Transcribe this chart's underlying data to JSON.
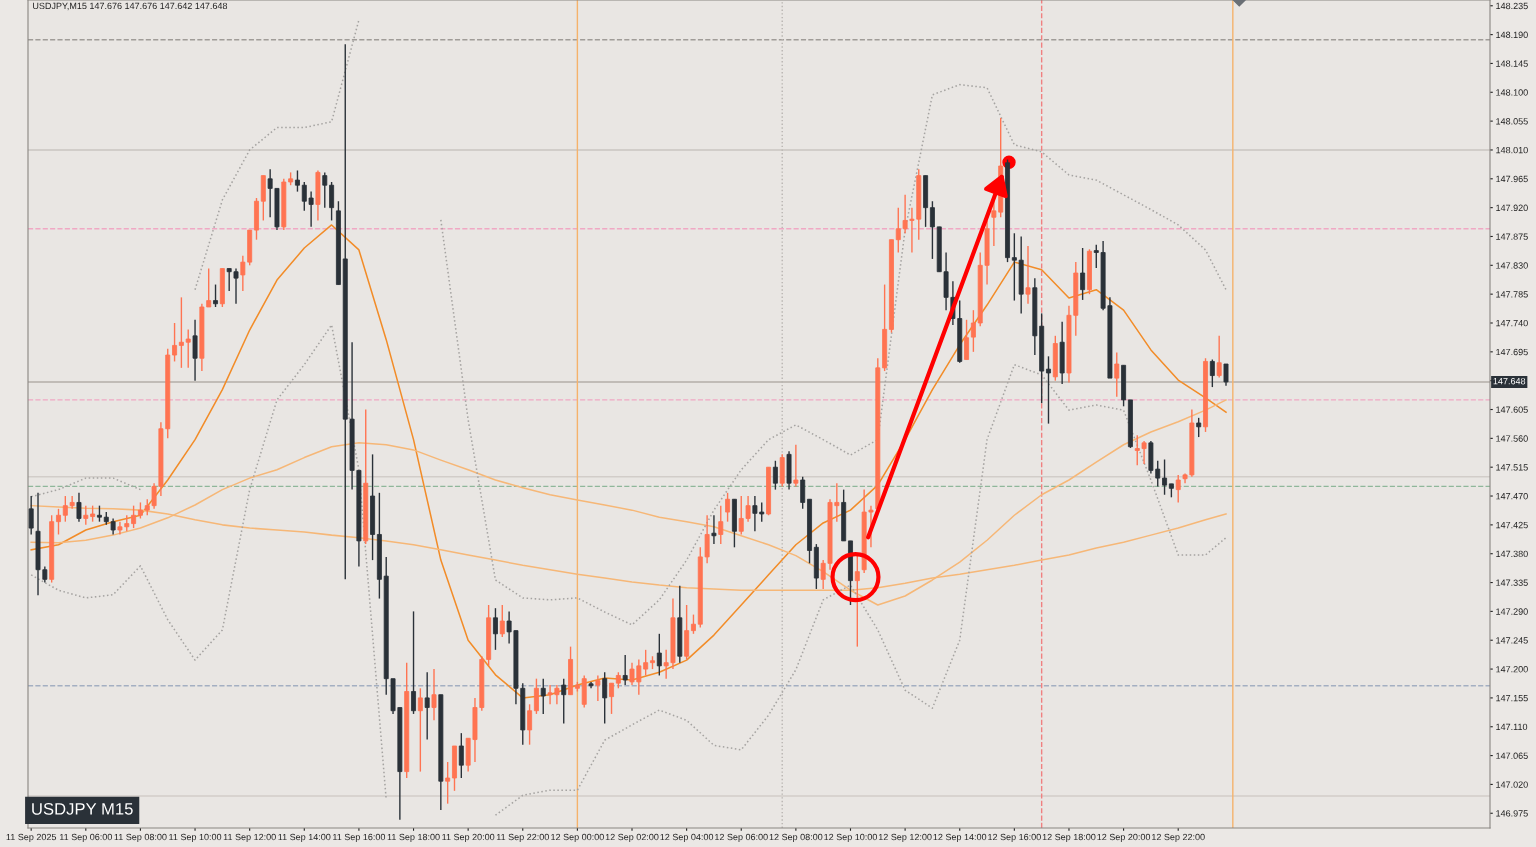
{
  "chart_data": {
    "type": "candlestick",
    "title": "USDJPY,M15 147.676 147.676 147.642 147.648",
    "annotations": [
      "USDJPY M15"
    ],
    "colors": [
      "#2a3138",
      "#2a3138",
      "#2a3138",
      "#ff7452",
      "#ff7452",
      "#ff7452",
      "#ff7452",
      "#2a3138",
      "#ff7452",
      "#ff7452",
      "#2a3138",
      "#2a3138",
      "#2a3138",
      "#ff7452",
      "#ff7452",
      "#ff7452",
      "#ff7452",
      "#ff7452",
      "#ff7452",
      "#ff7452",
      "#ff7452",
      "#ff7452",
      "#ff7452",
      "#ff7452",
      "#2a3138",
      "#ff7452",
      "#ff7452",
      "#2a3138",
      "#ff7452",
      "#2a3138",
      "#2a3138",
      "#ff7452",
      "#ff7452",
      "#ff7452",
      "#ff7452",
      "#2a3138",
      "#2a3138",
      "#ff7452",
      "#ff7452",
      "#2a3138",
      "#2a3138",
      "#2a3138",
      "#ff7452",
      "#2a3138",
      "#2a3138",
      "#2a3138",
      "#2a3138",
      "#2a3138",
      "#2a3138",
      "#ff7452",
      "#2a3138",
      "#2a3138",
      "#2a3138",
      "#2a3138",
      "#2a3138",
      "#ff7452",
      "#2a3138",
      "#ff7452",
      "#2a3138",
      "#ff7452",
      "#2a3138",
      "#ff7452",
      "#ff7452",
      "#2a3138",
      "#ff7452",
      "#ff7452",
      "#ff7452",
      "#ff7452",
      "#2a3138",
      "#ff7452",
      "#2a3138",
      "#2a3138",
      "#2a3138",
      "#ff7452",
      "#ff7452",
      "#2a3138",
      "#ff7452",
      "#ff7452",
      "#2a3138",
      "#ff7452",
      "#ff7452",
      "#ff7452",
      "#2a3138",
      "#ff7452",
      "#2a3138",
      "#ff7452",
      "#ff7452",
      "#2a3138",
      "#ff7452",
      "#ff7452",
      "#ff7452",
      "#ff7452",
      "#2a3138",
      "#ff7452",
      "#ff7452",
      "#2a3138",
      "#ff7452",
      "#ff7452",
      "#ff7452",
      "#ff7452",
      "#2a3138",
      "#ff7452",
      "#ff7452",
      "#2a3138",
      "#ff7452",
      "#ff7452",
      "#2a3138",
      "#2a3138",
      "#ff7452",
      "#2a3138",
      "#ff7452",
      "#2a3138",
      "#ff7452",
      "#2a3138",
      "#2a3138",
      "#2a3138",
      "#ff7452",
      "#ff7452",
      "#ff7452",
      "#2a3138",
      "#2a3138",
      "#ff7452",
      "#ff7452",
      "#ff7452",
      "#ff7452",
      "#ff7452",
      "#ff7452",
      "#ff7452",
      "#ff7452",
      "#ff7452",
      "#ff7452",
      "#2a3138",
      "#2a3138",
      "#2a3138",
      "#2a3138",
      "#2a3138",
      "#2a3138",
      "#ff7452",
      "#ff7452",
      "#ff7452",
      "#ff7452",
      "#ff7452",
      "#ff7452",
      "#2a3138",
      "#2a3138",
      "#2a3138",
      "#ff7452",
      "#2a3138",
      "#2a3138",
      "#2a3138",
      "#ff7452",
      "#2a3138",
      "#ff7452",
      "#ff7452",
      "#2a3138",
      "#ff7452",
      "#2a3138",
      "#2a3138",
      "#2a3138",
      "#ff7452",
      "#2a3138",
      "#2a3138",
      "#ff7452",
      "#ff7452",
      "#2a3138",
      "#2a3138",
      "#2a3138",
      "#2a3138",
      "#ff7452",
      "#ff7452",
      "#ff7452",
      "#2a3138",
      "#ff7452",
      "#2a3138",
      "#ff7452",
      "#2a3138"
    ],
    "x": [
      "2025-09-11T04:00",
      "2025-09-11T04:15",
      "2025-09-11T04:30",
      "2025-09-11T04:45",
      "2025-09-11T05:00",
      "2025-09-11T05:15",
      "2025-09-11T05:30",
      "2025-09-11T05:45",
      "2025-09-11T06:00",
      "2025-09-11T06:15",
      "2025-09-11T06:30",
      "2025-09-11T06:45",
      "2025-09-11T07:00",
      "2025-09-11T07:15",
      "2025-09-11T07:30",
      "2025-09-11T07:45",
      "2025-09-11T08:00",
      "2025-09-11T08:15",
      "2025-09-11T08:30",
      "2025-09-11T08:45",
      "2025-09-11T09:00",
      "2025-09-11T09:15",
      "2025-09-11T09:30",
      "2025-09-11T09:45",
      "2025-09-11T10:00",
      "2025-09-11T10:15",
      "2025-09-11T10:30",
      "2025-09-11T10:45",
      "2025-09-11T11:00",
      "2025-09-11T11:15",
      "2025-09-11T11:30",
      "2025-09-11T11:45",
      "2025-09-11T12:00",
      "2025-09-11T12:15",
      "2025-09-11T12:30",
      "2025-09-11T12:45",
      "2025-09-11T13:00",
      "2025-09-11T13:15",
      "2025-09-11T13:30",
      "2025-09-11T13:45",
      "2025-09-11T14:00",
      "2025-09-11T14:15",
      "2025-09-11T14:30",
      "2025-09-11T14:45",
      "2025-09-11T15:00",
      "2025-09-11T15:15",
      "2025-09-11T15:30",
      "2025-09-11T15:45",
      "2025-09-11T16:00",
      "2025-09-11T16:15",
      "2025-09-11T16:30",
      "2025-09-11T16:45",
      "2025-09-11T17:00",
      "2025-09-11T17:15",
      "2025-09-11T17:30",
      "2025-09-11T17:45",
      "2025-09-11T18:00",
      "2025-09-11T18:15",
      "2025-09-11T18:30",
      "2025-09-11T18:45",
      "2025-09-11T19:00",
      "2025-09-11T19:15",
      "2025-09-11T19:30",
      "2025-09-11T19:45",
      "2025-09-11T20:00",
      "2025-09-11T20:15",
      "2025-09-11T20:30",
      "2025-09-11T20:45",
      "2025-09-11T21:00",
      "2025-09-11T21:15",
      "2025-09-11T21:30",
      "2025-09-11T21:45",
      "2025-09-11T22:00",
      "2025-09-11T22:15",
      "2025-09-11T22:30",
      "2025-09-11T22:45",
      "2025-09-11T23:00",
      "2025-09-11T23:15",
      "2025-09-11T23:30",
      "2025-09-11T23:45",
      "2025-09-12T00:00",
      "2025-09-12T00:15",
      "2025-09-12T00:30",
      "2025-09-12T00:45",
      "2025-09-12T01:00",
      "2025-09-12T01:15",
      "2025-09-12T01:30",
      "2025-09-12T01:45",
      "2025-09-12T02:00",
      "2025-09-12T02:15",
      "2025-09-12T02:30",
      "2025-09-12T02:45",
      "2025-09-12T03:00",
      "2025-09-12T03:15",
      "2025-09-12T03:30",
      "2025-09-12T03:45",
      "2025-09-12T04:00",
      "2025-09-12T04:15",
      "2025-09-12T04:30",
      "2025-09-12T04:45",
      "2025-09-12T05:00",
      "2025-09-12T05:15",
      "2025-09-12T05:30",
      "2025-09-12T05:45",
      "2025-09-12T06:00",
      "2025-09-12T06:15",
      "2025-09-12T06:30",
      "2025-09-12T06:45",
      "2025-09-12T07:00",
      "2025-09-12T07:15",
      "2025-09-12T07:30",
      "2025-09-12T07:45",
      "2025-09-12T08:00",
      "2025-09-12T08:15",
      "2025-09-12T08:30",
      "2025-09-12T08:45",
      "2025-09-12T09:00",
      "2025-09-12T09:15",
      "2025-09-12T09:30",
      "2025-09-12T09:45",
      "2025-09-12T10:00",
      "2025-09-12T10:15",
      "2025-09-12T10:30",
      "2025-09-12T10:45",
      "2025-09-12T11:00",
      "2025-09-12T11:15",
      "2025-09-12T11:30",
      "2025-09-12T11:45",
      "2025-09-12T12:00",
      "2025-09-12T12:15",
      "2025-09-12T12:30",
      "2025-09-12T12:45",
      "2025-09-12T13:00",
      "2025-09-12T13:15",
      "2025-09-12T13:30",
      "2025-09-12T13:45",
      "2025-09-12T14:00",
      "2025-09-12T14:15",
      "2025-09-12T14:30",
      "2025-09-12T14:45",
      "2025-09-12T15:00",
      "2025-09-12T15:15",
      "2025-09-12T15:30",
      "2025-09-12T15:45",
      "2025-09-12T16:00",
      "2025-09-12T16:15",
      "2025-09-12T16:30",
      "2025-09-12T16:45",
      "2025-09-12T17:00",
      "2025-09-12T17:15",
      "2025-09-12T17:30",
      "2025-09-12T17:45",
      "2025-09-12T18:00",
      "2025-09-12T18:15",
      "2025-09-12T18:30",
      "2025-09-12T18:45",
      "2025-09-12T19:00",
      "2025-09-12T19:15",
      "2025-09-12T19:30",
      "2025-09-12T19:45",
      "2025-09-12T20:00",
      "2025-09-12T20:15",
      "2025-09-12T20:30",
      "2025-09-12T20:45",
      "2025-09-12T21:00",
      "2025-09-12T21:15",
      "2025-09-12T21:30",
      "2025-09-12T21:45",
      "2025-09-12T22:00",
      "2025-09-12T22:15",
      "2025-09-12T22:30",
      "2025-09-12T22:45",
      "2025-09-12T23:00",
      "2025-09-12T23:15",
      "2025-09-12T23:30",
      "2025-09-12T23:45"
    ],
    "ohlc": [
      [
        147.45,
        147.47,
        147.41,
        147.42
      ],
      [
        147.415,
        147.475,
        147.315,
        147.355
      ],
      [
        147.355,
        147.36,
        147.335,
        147.34
      ],
      [
        147.34,
        147.44,
        147.335,
        147.43
      ],
      [
        147.43,
        147.45,
        147.41,
        147.44
      ],
      [
        147.44,
        147.47,
        147.43,
        147.455
      ],
      [
        147.455,
        147.47,
        147.45,
        147.46
      ],
      [
        147.46,
        147.475,
        147.43,
        147.435
      ],
      [
        147.435,
        147.455,
        147.425,
        147.44
      ],
      [
        147.438,
        147.455,
        147.43,
        147.442
      ],
      [
        147.44,
        147.455,
        147.43,
        147.437
      ],
      [
        147.437,
        147.445,
        147.425,
        147.43
      ],
      [
        147.43,
        147.435,
        147.41,
        147.417
      ],
      [
        147.417,
        147.43,
        147.41,
        147.422
      ],
      [
        147.422,
        147.44,
        147.415,
        147.427
      ],
      [
        147.427,
        147.455,
        147.42,
        147.44
      ],
      [
        147.44,
        147.46,
        147.435,
        147.448
      ],
      [
        147.448,
        147.465,
        147.44,
        147.455
      ],
      [
        147.455,
        147.49,
        147.45,
        147.485
      ],
      [
        147.485,
        147.585,
        147.47,
        147.575
      ],
      [
        147.575,
        147.7,
        147.56,
        147.69
      ],
      [
        147.69,
        147.74,
        147.68,
        147.705
      ],
      [
        147.705,
        147.78,
        147.67,
        147.71
      ],
      [
        147.71,
        147.73,
        147.67,
        147.715
      ],
      [
        147.72,
        147.745,
        147.65,
        147.685
      ],
      [
        147.685,
        147.77,
        147.665,
        147.765
      ],
      [
        147.765,
        147.825,
        147.765,
        147.775
      ],
      [
        147.775,
        147.8,
        147.765,
        147.77
      ],
      [
        147.77,
        147.825,
        147.765,
        147.825
      ],
      [
        147.825,
        147.825,
        147.79,
        147.82
      ],
      [
        147.82,
        147.825,
        147.77,
        147.81
      ],
      [
        147.815,
        147.845,
        147.79,
        147.835
      ],
      [
        147.835,
        147.885,
        147.83,
        147.885
      ],
      [
        147.885,
        147.935,
        147.87,
        147.93
      ],
      [
        147.93,
        147.97,
        147.9,
        147.97
      ],
      [
        147.965,
        147.98,
        147.905,
        147.95
      ],
      [
        147.95,
        147.95,
        147.885,
        147.89
      ],
      [
        147.89,
        147.965,
        147.885,
        147.96
      ],
      [
        147.96,
        147.975,
        147.955,
        147.965
      ],
      [
        147.963,
        147.978,
        147.945,
        147.955
      ],
      [
        147.955,
        147.96,
        147.915,
        147.93
      ],
      [
        147.935,
        147.945,
        147.89,
        147.925
      ],
      [
        147.925,
        147.978,
        147.9,
        147.975
      ],
      [
        147.97,
        147.975,
        147.92,
        147.955
      ],
      [
        147.955,
        147.96,
        147.9,
        147.92
      ],
      [
        147.915,
        147.93,
        147.8,
        147.8
      ],
      [
        147.84,
        148.175,
        147.34,
        147.59
      ],
      [
        147.59,
        147.71,
        147.48,
        147.51
      ],
      [
        147.51,
        147.51,
        147.36,
        147.4
      ],
      [
        147.4,
        147.605,
        147.395,
        147.49
      ],
      [
        147.47,
        147.535,
        147.37,
        147.41
      ],
      [
        147.41,
        147.475,
        147.31,
        147.34
      ],
      [
        147.345,
        147.375,
        147.16,
        147.185
      ],
      [
        147.185,
        147.185,
        147.13,
        147.135
      ],
      [
        147.14,
        147.14,
        146.965,
        147.04
      ],
      [
        147.04,
        147.21,
        147.03,
        147.165
      ],
      [
        147.165,
        147.29,
        147.13,
        147.135
      ],
      [
        147.135,
        147.17,
        147.04,
        147.155
      ],
      [
        147.155,
        147.195,
        147.09,
        147.14
      ],
      [
        147.14,
        147.2,
        147.12,
        147.16
      ],
      [
        147.16,
        147.16,
        146.98,
        147.025
      ],
      [
        147.025,
        147.055,
        146.99,
        147.03
      ],
      [
        147.03,
        147.08,
        147.01,
        147.08
      ],
      [
        147.08,
        147.1,
        147.03,
        147.05
      ],
      [
        147.05,
        147.092,
        147.04,
        147.092
      ],
      [
        147.09,
        147.155,
        147.055,
        147.14
      ],
      [
        147.14,
        147.22,
        147.135,
        147.215
      ],
      [
        147.215,
        147.3,
        147.205,
        147.28
      ],
      [
        147.28,
        147.295,
        147.23,
        147.255
      ],
      [
        147.255,
        147.3,
        147.25,
        147.275
      ],
      [
        147.275,
        147.29,
        147.24,
        147.258
      ],
      [
        147.26,
        147.26,
        147.145,
        147.17
      ],
      [
        147.17,
        147.178,
        147.082,
        147.105
      ],
      [
        147.105,
        147.145,
        147.082,
        147.135
      ],
      [
        147.135,
        147.185,
        147.13,
        147.17
      ],
      [
        147.17,
        147.185,
        147.13,
        147.158
      ],
      [
        147.16,
        147.175,
        147.145,
        147.163
      ],
      [
        147.16,
        147.175,
        147.145,
        147.17
      ],
      [
        147.175,
        147.185,
        147.115,
        147.16
      ],
      [
        147.16,
        147.235,
        147.16,
        147.215
      ],
      [
        147.17,
        147.18,
        147.165,
        147.175
      ],
      [
        147.145,
        147.19,
        147.14,
        147.185
      ],
      [
        147.177,
        147.18,
        147.17,
        147.174
      ],
      [
        147.175,
        147.19,
        147.15,
        147.182
      ],
      [
        147.185,
        147.195,
        147.115,
        147.155
      ],
      [
        147.157,
        147.178,
        147.13,
        147.178
      ],
      [
        147.178,
        147.195,
        147.17,
        147.19
      ],
      [
        147.19,
        147.222,
        147.175,
        147.183
      ],
      [
        147.18,
        147.21,
        147.175,
        147.2
      ],
      [
        147.18,
        147.215,
        147.16,
        147.205
      ],
      [
        147.2,
        147.23,
        147.19,
        147.21
      ],
      [
        147.21,
        147.22,
        147.2,
        147.213
      ],
      [
        147.225,
        147.255,
        147.19,
        147.205
      ],
      [
        147.205,
        147.23,
        147.185,
        147.21
      ],
      [
        147.21,
        147.31,
        147.2,
        147.28
      ],
      [
        147.28,
        147.33,
        147.21,
        147.22
      ],
      [
        147.22,
        147.3,
        147.215,
        147.26
      ],
      [
        147.26,
        147.285,
        147.255,
        147.27
      ],
      [
        147.27,
        147.39,
        147.265,
        147.375
      ],
      [
        147.375,
        147.44,
        147.365,
        147.41
      ],
      [
        147.412,
        147.44,
        147.395,
        147.408
      ],
      [
        147.41,
        147.455,
        147.395,
        147.43
      ],
      [
        147.445,
        147.475,
        147.43,
        147.465
      ],
      [
        147.465,
        147.465,
        147.39,
        147.415
      ],
      [
        147.415,
        147.47,
        147.41,
        147.435
      ],
      [
        147.435,
        147.47,
        147.43,
        147.455
      ],
      [
        147.455,
        147.47,
        147.415,
        147.443
      ],
      [
        147.445,
        147.46,
        147.43,
        147.442
      ],
      [
        147.442,
        147.515,
        147.44,
        147.515
      ],
      [
        147.515,
        147.525,
        147.48,
        147.49
      ],
      [
        147.49,
        147.535,
        147.485,
        147.53
      ],
      [
        147.535,
        147.54,
        147.48,
        147.49
      ],
      [
        147.49,
        147.55,
        147.485,
        147.495
      ],
      [
        147.495,
        147.5,
        147.45,
        147.46
      ],
      [
        147.465,
        147.465,
        147.365,
        147.385
      ],
      [
        147.39,
        147.395,
        147.325,
        147.342
      ],
      [
        147.34,
        147.37,
        147.325,
        147.365
      ],
      [
        147.365,
        147.465,
        147.355,
        147.46
      ],
      [
        147.455,
        147.49,
        147.43,
        147.46
      ],
      [
        147.46,
        147.48,
        147.4,
        147.4
      ],
      [
        147.4,
        147.4,
        147.3,
        147.338
      ],
      [
        147.338,
        147.38,
        147.235,
        147.352
      ],
      [
        147.355,
        147.48,
        147.35,
        147.445
      ],
      [
        147.445,
        147.455,
        147.39,
        147.448
      ],
      [
        147.45,
        147.685,
        147.445,
        147.67
      ],
      [
        147.67,
        147.8,
        147.665,
        147.73
      ],
      [
        147.73,
        147.87,
        147.725,
        147.87
      ],
      [
        147.87,
        147.92,
        147.85,
        147.887
      ],
      [
        147.887,
        147.94,
        147.88,
        147.9
      ],
      [
        147.9,
        147.92,
        147.85,
        147.902
      ],
      [
        147.902,
        147.98,
        147.87,
        147.97
      ],
      [
        147.97,
        147.97,
        147.89,
        147.92
      ],
      [
        147.92,
        147.93,
        147.84,
        147.89
      ],
      [
        147.89,
        147.89,
        147.82,
        147.82
      ],
      [
        147.82,
        147.85,
        147.76,
        147.78
      ],
      [
        147.78,
        147.805,
        147.737,
        147.747
      ],
      [
        147.747,
        147.775,
        147.678,
        147.68
      ],
      [
        147.683,
        147.745,
        147.683,
        147.717
      ],
      [
        147.718,
        147.76,
        147.695,
        147.74
      ],
      [
        147.74,
        147.85,
        147.735,
        147.83
      ],
      [
        147.83,
        147.9,
        147.8,
        147.887
      ],
      [
        147.905,
        147.94,
        147.86,
        147.915
      ],
      [
        147.913,
        148.06,
        147.905,
        147.985
      ],
      [
        147.99,
        147.995,
        147.835,
        147.842
      ],
      [
        147.842,
        147.88,
        147.775,
        147.838
      ],
      [
        147.838,
        147.875,
        147.755,
        147.785
      ],
      [
        147.785,
        147.86,
        147.77,
        147.795
      ],
      [
        147.795,
        147.81,
        147.69,
        147.72
      ],
      [
        147.735,
        147.755,
        147.615,
        147.665
      ],
      [
        147.668,
        147.688,
        147.583,
        147.662
      ],
      [
        147.656,
        147.72,
        147.65,
        147.708
      ],
      [
        147.71,
        147.742,
        147.645,
        147.662
      ],
      [
        147.662,
        147.767,
        147.647,
        147.752
      ],
      [
        147.752,
        147.835,
        147.72,
        147.818
      ],
      [
        147.818,
        147.857,
        147.776,
        147.792
      ],
      [
        147.792,
        147.855,
        147.785,
        147.852
      ],
      [
        147.853,
        147.862,
        147.826,
        147.85
      ],
      [
        147.85,
        147.868,
        147.76,
        147.763
      ],
      [
        147.767,
        147.78,
        147.654,
        147.654
      ],
      [
        147.654,
        147.694,
        147.625,
        147.676
      ],
      [
        147.674,
        147.674,
        147.61,
        147.62
      ],
      [
        147.62,
        147.62,
        147.545,
        147.547
      ],
      [
        147.541,
        147.565,
        147.518,
        147.544
      ],
      [
        147.544,
        147.556,
        147.52,
        147.553
      ],
      [
        147.553,
        147.556,
        147.505,
        147.51
      ],
      [
        147.512,
        147.525,
        147.485,
        147.498
      ],
      [
        147.498,
        147.527,
        147.472,
        147.487
      ],
      [
        147.489,
        147.489,
        147.468,
        147.482
      ],
      [
        147.48,
        147.503,
        147.46,
        147.495
      ],
      [
        147.497,
        147.505,
        147.49,
        147.503
      ],
      [
        147.503,
        147.605,
        147.5,
        147.584
      ],
      [
        147.584,
        147.592,
        147.562,
        147.578
      ],
      [
        147.578,
        147.685,
        147.57,
        147.68
      ],
      [
        147.68,
        147.683,
        147.64,
        147.658
      ],
      [
        147.658,
        147.72,
        147.655,
        147.678
      ],
      [
        147.676,
        147.676,
        147.642,
        147.648
      ]
    ],
    "series": [
      {
        "type": "line",
        "color": "#f28c28",
        "line_style": "solid",
        "x": [
          "2025-09-11T04:00",
          "2025-09-11T05:00",
          "2025-09-11T06:00",
          "2025-09-11T07:00",
          "2025-09-11T08:00",
          "2025-09-11T09:00",
          "2025-09-11T10:00",
          "2025-09-11T11:00",
          "2025-09-11T12:00",
          "2025-09-11T13:00",
          "2025-09-11T14:00",
          "2025-09-11T15:00",
          "2025-09-11T16:00",
          "2025-09-11T17:00",
          "2025-09-11T18:00",
          "2025-09-11T19:00",
          "2025-09-11T20:00",
          "2025-09-11T21:00",
          "2025-09-11T22:00",
          "2025-09-11T23:00",
          "2025-09-12T00:00",
          "2025-09-12T01:00",
          "2025-09-12T02:00",
          "2025-09-12T03:00",
          "2025-09-12T04:00",
          "2025-09-12T05:00",
          "2025-09-12T06:00",
          "2025-09-12T07:00",
          "2025-09-12T08:00",
          "2025-09-12T09:00",
          "2025-09-12T10:00",
          "2025-09-12T11:00",
          "2025-09-12T12:00",
          "2025-09-12T13:00",
          "2025-09-12T14:00",
          "2025-09-12T15:00",
          "2025-09-12T16:00",
          "2025-09-12T17:00",
          "2025-09-12T18:00",
          "2025-09-12T19:00",
          "2025-09-12T20:00",
          "2025-09-12T21:00",
          "2025-09-12T22:00",
          "2025-09-12T23:00",
          "2025-09-12T23:45"
        ],
        "values": [
          147.386,
          147.394,
          147.417,
          147.43,
          147.44,
          147.495,
          147.558,
          147.636,
          147.729,
          147.807,
          147.857,
          147.893,
          147.854,
          147.714,
          147.558,
          147.37,
          147.245,
          147.191,
          147.155,
          147.16,
          147.175,
          147.186,
          147.183,
          147.195,
          147.214,
          147.253,
          147.3,
          147.347,
          147.394,
          147.428,
          147.448,
          147.487,
          147.558,
          147.636,
          147.706,
          147.768,
          147.835,
          147.823,
          147.779,
          147.792,
          147.76,
          147.698,
          147.651,
          147.623,
          147.601
        ]
      },
      {
        "type": "line",
        "color": "#f6b777",
        "line_style": "solid",
        "x": [
          "2025-09-11T04:00",
          "2025-09-11T05:00",
          "2025-09-11T06:00",
          "2025-09-11T07:00",
          "2025-09-11T08:00",
          "2025-09-11T09:00",
          "2025-09-11T10:00",
          "2025-09-11T11:00",
          "2025-09-11T12:00",
          "2025-09-11T13:00",
          "2025-09-11T14:00",
          "2025-09-11T15:00",
          "2025-09-11T16:00",
          "2025-09-11T17:00",
          "2025-09-11T18:00",
          "2025-09-11T19:00",
          "2025-09-11T20:00",
          "2025-09-11T21:00",
          "2025-09-11T22:00",
          "2025-09-11T23:00",
          "2025-09-12T00:00",
          "2025-09-12T01:00",
          "2025-09-12T02:00",
          "2025-09-12T03:00",
          "2025-09-12T04:00",
          "2025-09-12T05:00",
          "2025-09-12T06:00",
          "2025-09-12T07:00",
          "2025-09-12T08:00",
          "2025-09-12T09:00",
          "2025-09-12T10:00",
          "2025-09-12T11:00",
          "2025-09-12T12:00",
          "2025-09-12T13:00",
          "2025-09-12T14:00",
          "2025-09-12T15:00",
          "2025-09-12T16:00",
          "2025-09-12T17:00",
          "2025-09-12T18:00",
          "2025-09-12T19:00",
          "2025-09-12T20:00",
          "2025-09-12T21:00",
          "2025-09-12T22:00",
          "2025-09-12T23:00",
          "2025-09-12T23:45"
        ],
        "values": [
          147.398,
          147.397,
          147.401,
          147.409,
          147.42,
          147.436,
          147.456,
          147.48,
          147.498,
          147.511,
          147.53,
          147.547,
          147.553,
          147.55,
          147.542,
          147.526,
          147.511,
          147.495,
          147.483,
          147.472,
          147.464,
          147.456,
          147.448,
          147.437,
          147.43,
          147.422,
          147.408,
          147.394,
          147.377,
          147.352,
          147.323,
          147.3,
          147.314,
          147.339,
          147.367,
          147.401,
          147.44,
          147.472,
          147.495,
          147.523,
          147.55,
          147.57,
          147.586,
          147.604,
          147.62
        ]
      },
      {
        "type": "line",
        "color": "#f6b777",
        "line_style": "solid",
        "x": [
          "2025-09-11T04:00",
          "2025-09-11T05:00",
          "2025-09-11T06:00",
          "2025-09-11T07:00",
          "2025-09-11T08:00",
          "2025-09-11T09:00",
          "2025-09-11T10:00",
          "2025-09-11T11:00",
          "2025-09-11T12:00",
          "2025-09-11T13:00",
          "2025-09-11T14:00",
          "2025-09-11T15:00",
          "2025-09-11T16:00",
          "2025-09-11T17:00",
          "2025-09-11T18:00",
          "2025-09-11T19:00",
          "2025-09-11T20:00",
          "2025-09-11T21:00",
          "2025-09-11T22:00",
          "2025-09-11T23:00",
          "2025-09-12T00:00",
          "2025-09-12T01:00",
          "2025-09-12T02:00",
          "2025-09-12T03:00",
          "2025-09-12T04:00",
          "2025-09-12T05:00",
          "2025-09-12T06:00",
          "2025-09-12T07:00",
          "2025-09-12T08:00",
          "2025-09-12T09:00",
          "2025-09-12T10:00",
          "2025-09-12T11:00",
          "2025-09-12T12:00",
          "2025-09-12T13:00",
          "2025-09-12T14:00",
          "2025-09-12T15:00",
          "2025-09-12T16:00",
          "2025-09-12T17:00",
          "2025-09-12T18:00",
          "2025-09-12T19:00",
          "2025-09-12T20:00",
          "2025-09-12T21:00",
          "2025-09-12T22:00",
          "2025-09-12T23:00",
          "2025-09-12T23:45"
        ],
        "values": [
          147.455,
          147.453,
          147.451,
          147.45,
          147.448,
          147.442,
          147.433,
          147.425,
          147.42,
          147.417,
          147.414,
          147.409,
          147.405,
          147.4,
          147.394,
          147.386,
          147.378,
          147.37,
          147.362,
          147.355,
          147.348,
          147.342,
          147.336,
          147.331,
          147.327,
          147.325,
          147.323,
          147.323,
          147.323,
          147.323,
          147.323,
          147.327,
          147.334,
          147.342,
          147.348,
          147.355,
          147.362,
          147.37,
          147.378,
          147.389,
          147.398,
          147.409,
          147.42,
          147.433,
          147.442
        ]
      },
      {
        "type": "line",
        "color": "#a5a3a1",
        "line_style": "dotted",
        "x": [
          "2025-09-11T04:00",
          "2025-09-11T05:00",
          "2025-09-11T06:00",
          "2025-09-11T07:00",
          "2025-09-11T08:00",
          "2025-09-11T09:00",
          "2025-09-11T10:00",
          "2025-09-11T11:00",
          "2025-09-11T12:00",
          "2025-09-11T13:00",
          "2025-09-11T14:00",
          "2025-09-11T15:00",
          "2025-09-11T16:00",
          "2025-09-11T17:00",
          "2025-09-11T18:00",
          "2025-09-11T19:00",
          "2025-09-11T20:00",
          "2025-09-11T21:00",
          "2025-09-11T22:00",
          "2025-09-11T23:00",
          "2025-09-12T00:00",
          "2025-09-12T01:00",
          "2025-09-12T02:00",
          "2025-09-12T03:00",
          "2025-09-12T04:00",
          "2025-09-12T05:00",
          "2025-09-12T06:00",
          "2025-09-12T07:00",
          "2025-09-12T08:00",
          "2025-09-12T09:00",
          "2025-09-12T10:00",
          "2025-09-12T11:00",
          "2025-09-12T12:00",
          "2025-09-12T13:00",
          "2025-09-12T14:00",
          "2025-09-12T15:00",
          "2025-09-12T16:00",
          "2025-09-12T17:00",
          "2025-09-12T18:00",
          "2025-09-12T19:00",
          "2025-09-12T20:00",
          "2025-09-12T21:00",
          "2025-09-12T22:00",
          "2025-09-12T23:00",
          "2025-09-12T23:45"
        ],
        "values": [
          147.469,
          147.48,
          147.498,
          147.498,
          147.48,
          null,
          147.792,
          147.932,
          148.01,
          148.045,
          148.045,
          148.054,
          148.213,
          null,
          null,
          147.901,
          147.589,
          147.339,
          147.311,
          147.308,
          147.311,
          147.289,
          147.269,
          147.308,
          147.37,
          147.448,
          147.511,
          147.558,
          147.581,
          147.558,
          147.534,
          147.558,
          147.885,
          148.096,
          148.112,
          148.107,
          148.018,
          148.007,
          147.971,
          147.963,
          147.94,
          147.917,
          147.893,
          147.854,
          147.792
        ]
      },
      {
        "type": "line",
        "color": "#a5a3a1",
        "line_style": "dotted",
        "x": [
          "2025-09-11T04:00",
          "2025-09-11T05:00",
          "2025-09-11T06:00",
          "2025-09-11T07:00",
          "2025-09-11T08:00",
          "2025-09-11T09:00",
          "2025-09-11T10:00",
          "2025-09-11T11:00",
          "2025-09-11T12:00",
          "2025-09-11T13:00",
          "2025-09-11T14:00",
          "2025-09-11T15:00",
          "2025-09-11T16:00",
          "2025-09-11T17:00",
          "2025-09-11T18:00",
          "2025-09-11T19:00",
          "2025-09-11T20:00",
          "2025-09-11T21:00",
          "2025-09-11T22:00",
          "2025-09-11T23:00",
          "2025-09-12T00:00",
          "2025-09-12T01:00",
          "2025-09-12T02:00",
          "2025-09-12T03:00",
          "2025-09-12T04:00",
          "2025-09-12T05:00",
          "2025-09-12T06:00",
          "2025-09-12T07:00",
          "2025-09-12T08:00",
          "2025-09-12T09:00",
          "2025-09-12T10:00",
          "2025-09-12T11:00",
          "2025-09-12T12:00",
          "2025-09-12T13:00",
          "2025-09-12T14:00",
          "2025-09-12T15:00",
          "2025-09-12T16:00",
          "2025-09-12T17:00",
          "2025-09-12T18:00",
          "2025-09-12T19:00",
          "2025-09-12T20:00",
          "2025-09-12T21:00",
          "2025-09-12T22:00",
          "2025-09-12T23:00",
          "2025-09-12T23:45"
        ],
        "values": [
          147.347,
          147.323,
          147.311,
          147.316,
          147.361,
          147.277,
          147.214,
          147.261,
          147.48,
          147.62,
          147.675,
          147.737,
          147.511,
          146.996,
          null,
          null,
          null,
          146.972,
          147.003,
          147.011,
          147.011,
          147.089,
          147.113,
          147.136,
          147.12,
          147.081,
          147.074,
          147.128,
          147.199,
          147.308,
          147.331,
          147.261,
          147.167,
          147.139,
          147.245,
          147.558,
          147.675,
          147.659,
          147.604,
          147.612,
          147.604,
          147.495,
          147.378,
          147.378,
          147.405
        ]
      }
    ],
    "ref_lines": [
      {
        "axis": "y",
        "value": 148.182,
        "color": "#a09c98",
        "line_style": "dashed"
      },
      {
        "axis": "y",
        "value": 148.01,
        "color": "#c9c4c0",
        "line_style": "solid"
      },
      {
        "axis": "y",
        "value": 147.887,
        "color": "#f0a8c4",
        "line_style": "dashed"
      },
      {
        "axis": "y",
        "value": 147.648,
        "color": "#b3aea9",
        "line_style": "solid",
        "label": "147.648"
      },
      {
        "axis": "y",
        "value": 147.62,
        "color": "#f0a8c4",
        "line_style": "dashed"
      },
      {
        "axis": "y",
        "value": 147.5,
        "color": "#d2cdc9",
        "line_style": "solid"
      },
      {
        "axis": "y",
        "value": 147.485,
        "color": "#8fb79a",
        "line_style": "dashed"
      },
      {
        "axis": "y",
        "value": 147.174,
        "color": "#a4afc2",
        "line_style": "dashed"
      },
      {
        "axis": "y",
        "value": 147.002,
        "color": "#d2cdc9",
        "line_style": "solid"
      },
      {
        "axis": "x",
        "value": "2025-09-12T00:00",
        "color": "#f5b26b",
        "line_style": "solid"
      },
      {
        "axis": "x",
        "value": "2025-09-12T07:30",
        "color": "#b8b4b0",
        "line_style": "dotted"
      },
      {
        "axis": "x",
        "value": "2025-09-12T17:00",
        "color": "#f08080",
        "line_style": "dashed"
      },
      {
        "axis": "x",
        "value": "2025-09-13T00:00",
        "color": "#f5b26b",
        "line_style": "solid"
      }
    ],
    "xlim": [
      "2025-09-11T03:53",
      "2025-09-13T09:25"
    ],
    "xticks": [
      {
        "value": "2025-09-11T04:00",
        "label": "11 Sep 2025"
      },
      {
        "value": "2025-09-11T06:00",
        "label": "11 Sep 06:00"
      },
      {
        "value": "2025-09-11T08:00",
        "label": "11 Sep 08:00"
      },
      {
        "value": "2025-09-11T10:00",
        "label": "11 Sep 10:00"
      },
      {
        "value": "2025-09-11T12:00",
        "label": "11 Sep 12:00"
      },
      {
        "value": "2025-09-11T14:00",
        "label": "11 Sep 14:00"
      },
      {
        "value": "2025-09-11T16:00",
        "label": "11 Sep 16:00"
      },
      {
        "value": "2025-09-11T18:00",
        "label": "11 Sep 18:00"
      },
      {
        "value": "2025-09-11T20:00",
        "label": "11 Sep 20:00"
      },
      {
        "value": "2025-09-11T22:00",
        "label": "11 Sep 22:00"
      },
      {
        "value": "2025-09-12T00:00",
        "label": "12 Sep 00:00"
      },
      {
        "value": "2025-09-12T02:00",
        "label": "12 Sep 02:00"
      },
      {
        "value": "2025-09-12T04:00",
        "label": "12 Sep 04:00"
      },
      {
        "value": "2025-09-12T06:00",
        "label": "12 Sep 06:00"
      },
      {
        "value": "2025-09-12T08:00",
        "label": "12 Sep 08:00"
      },
      {
        "value": "2025-09-12T10:00",
        "label": "12 Sep 10:00"
      },
      {
        "value": "2025-09-12T12:00",
        "label": "12 Sep 12:00"
      },
      {
        "value": "2025-09-12T14:00",
        "label": "12 Sep 14:00"
      },
      {
        "value": "2025-09-12T16:00",
        "label": "12 Sep 16:00"
      },
      {
        "value": "2025-09-12T18:00",
        "label": "12 Sep 18:00"
      },
      {
        "value": "2025-09-12T20:00",
        "label": "12 Sep 20:00"
      },
      {
        "value": "2025-09-12T22:00",
        "label": "12 Sep 22:00"
      }
    ],
    "ylim": [
      146.952,
      148.244
    ],
    "yticks": [
      {
        "value": 146.975,
        "label": "146.975"
      },
      {
        "value": 147.02,
        "label": "147.020"
      },
      {
        "value": 147.065,
        "label": "147.065"
      },
      {
        "value": 147.11,
        "label": "147.110"
      },
      {
        "value": 147.155,
        "label": "147.155"
      },
      {
        "value": 147.2,
        "label": "147.200"
      },
      {
        "value": 147.245,
        "label": "147.245"
      },
      {
        "value": 147.29,
        "label": "147.290"
      },
      {
        "value": 147.335,
        "label": "147.335"
      },
      {
        "value": 147.38,
        "label": "147.380"
      },
      {
        "value": 147.425,
        "label": "147.425"
      },
      {
        "value": 147.47,
        "label": "147.470"
      },
      {
        "value": 147.515,
        "label": "147.515"
      },
      {
        "value": 147.56,
        "label": "147.560"
      },
      {
        "value": 147.605,
        "label": "147.605"
      },
      {
        "value": 147.65,
        "label": null
      },
      {
        "value": 147.695,
        "label": "147.695"
      },
      {
        "value": 147.74,
        "label": "147.740"
      },
      {
        "value": 147.785,
        "label": "147.785"
      },
      {
        "value": 147.83,
        "label": "147.830"
      },
      {
        "value": 147.875,
        "label": "147.875"
      },
      {
        "value": 147.92,
        "label": "147.920"
      },
      {
        "value": 147.965,
        "label": "147.965"
      },
      {
        "value": 148.01,
        "label": "148.010"
      },
      {
        "value": 148.055,
        "label": "148.055"
      },
      {
        "value": 148.1,
        "label": "148.100"
      },
      {
        "value": 148.145,
        "label": "148.145"
      },
      {
        "value": 148.19,
        "label": "148.190"
      },
      {
        "value": 148.235,
        "label": "148.235"
      }
    ]
  }
}
